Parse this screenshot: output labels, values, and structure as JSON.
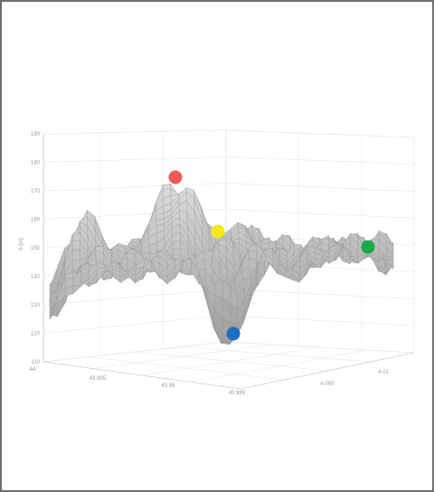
{
  "chart_data": {
    "type": "surface",
    "zlabel": "h [m]",
    "zlim": [
      110,
      190
    ],
    "z_ticks": [
      "110",
      "120",
      "130",
      "140",
      "150",
      "160",
      "170",
      "180",
      "190"
    ],
    "x_ticks": [
      "44",
      "43.995",
      "43.99",
      "43.985"
    ],
    "y_ticks": [
      "4.005",
      "4.01"
    ],
    "grid": true,
    "markers": [
      {
        "color": "#ee5a5a",
        "h": 175
      },
      {
        "color": "#f5e814",
        "h": 157
      },
      {
        "color": "#1a6fbf",
        "h": 121
      },
      {
        "color": "#1aaa4a",
        "h": 151
      }
    ]
  }
}
